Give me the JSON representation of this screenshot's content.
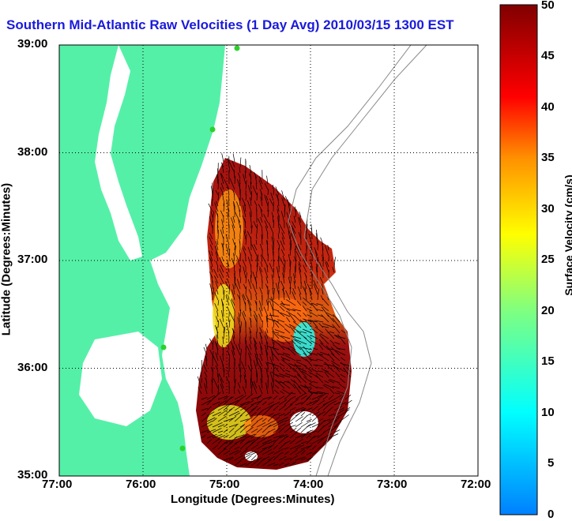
{
  "title": "Southern Mid-Atlantic Raw Velocities (1 Day Avg) 2010/03/15 1300 EST",
  "x_axis": {
    "label": "Longitude (Degrees:Minutes)",
    "ticks": [
      "77:00",
      "76:00",
      "75:00",
      "74:00",
      "73:00",
      "72:00"
    ]
  },
  "y_axis": {
    "label": "Latitude (Degrees:Minutes)",
    "ticks": [
      "39:00",
      "38:00",
      "37:00",
      "36:00",
      "35:00"
    ]
  },
  "colorbar": {
    "label": "Surface Velocity (cm/s)",
    "ticks": [
      "50",
      "45",
      "40",
      "35",
      "30",
      "25",
      "20",
      "15",
      "10",
      "5",
      "0"
    ],
    "min": 0,
    "max": 50
  },
  "colors": {
    "land": "#55f0a8",
    "water": "#ffffff",
    "title": "#1a1adc",
    "station": "#2cd12c",
    "bathymetry": "#888888"
  }
}
